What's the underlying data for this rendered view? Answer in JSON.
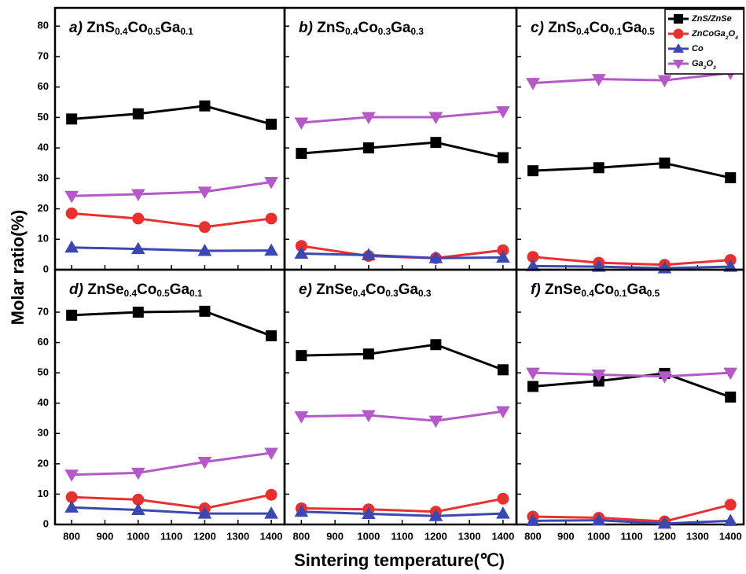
{
  "ylabel": "Molar ratio(%)",
  "xlabel": "Sintering temperature(℃)",
  "chart_data": [
    {
      "type": "line",
      "title": "a) ZnS0.4Co0.5Ga0.1",
      "x": [
        800,
        1000,
        1200,
        1400
      ],
      "xlim": [
        750,
        1440
      ],
      "xticks": [
        800,
        900,
        1000,
        1100,
        1200,
        1300,
        1400
      ],
      "ylim": [
        0,
        86
      ],
      "yticks": [
        0,
        10,
        20,
        30,
        40,
        50,
        60,
        70,
        80
      ],
      "series": [
        {
          "name": "ZnS/ZnSe",
          "color": "#000000",
          "marker": "s",
          "values": [
            49.5,
            51.2,
            53.8,
            47.8
          ]
        },
        {
          "name": "ZnCoGa2O4",
          "color": "#e8312f",
          "marker": "o",
          "values": [
            18.5,
            16.8,
            14.0,
            16.8
          ]
        },
        {
          "name": "Co",
          "color": "#3a48b0",
          "marker": "^",
          "values": [
            7.3,
            6.8,
            6.2,
            6.3
          ]
        },
        {
          "name": "Ga2O3",
          "color": "#b459c7",
          "marker": "v",
          "values": [
            24.2,
            24.8,
            25.6,
            28.8
          ]
        }
      ]
    },
    {
      "type": "line",
      "title": "b) ZnS0.4Co0.3Ga0.3",
      "x": [
        800,
        1000,
        1200,
        1400
      ],
      "xlim": [
        750,
        1440
      ],
      "xticks": [
        800,
        900,
        1000,
        1100,
        1200,
        1300,
        1400
      ],
      "ylim": [
        0,
        86
      ],
      "yticks": [
        0,
        10,
        20,
        30,
        40,
        50,
        60,
        70,
        80
      ],
      "series": [
        {
          "name": "ZnS/ZnSe",
          "color": "#000000",
          "marker": "s",
          "values": [
            38.2,
            40.0,
            41.8,
            36.8
          ]
        },
        {
          "name": "ZnCoGa2O4",
          "color": "#e8312f",
          "marker": "o",
          "values": [
            7.8,
            4.5,
            3.8,
            6.4
          ]
        },
        {
          "name": "Co",
          "color": "#3a48b0",
          "marker": "^",
          "values": [
            5.3,
            4.8,
            3.8,
            4.0
          ]
        },
        {
          "name": "Ga2O3",
          "color": "#b459c7",
          "marker": "v",
          "values": [
            48.3,
            50.1,
            50.1,
            52.0
          ]
        }
      ]
    },
    {
      "type": "line",
      "title": "c) ZnS0.4Co0.1Ga0.5",
      "x": [
        800,
        1000,
        1200,
        1400
      ],
      "xlim": [
        750,
        1440
      ],
      "xticks": [
        800,
        900,
        1000,
        1100,
        1200,
        1300,
        1400
      ],
      "ylim": [
        0,
        86
      ],
      "yticks": [
        0,
        10,
        20,
        30,
        40,
        50,
        60,
        70,
        80
      ],
      "legend": "upper right",
      "series": [
        {
          "name": "ZnS/ZnSe",
          "color": "#000000",
          "marker": "s",
          "values": [
            32.5,
            33.5,
            35.0,
            30.2
          ]
        },
        {
          "name": "ZnCoGa2O4",
          "color": "#e8312f",
          "marker": "o",
          "values": [
            4.2,
            2.3,
            1.6,
            3.2
          ]
        },
        {
          "name": "Co",
          "color": "#3a48b0",
          "marker": "^",
          "values": [
            1.2,
            1.0,
            0.5,
            1.0
          ]
        },
        {
          "name": "Ga2O3",
          "color": "#b459c7",
          "marker": "v",
          "values": [
            61.3,
            62.6,
            62.2,
            64.6
          ]
        }
      ]
    },
    {
      "type": "line",
      "title": "d) ZnSe0.4Co0.5Ga0.1",
      "x": [
        800,
        1000,
        1200,
        1400
      ],
      "xlim": [
        750,
        1440
      ],
      "xticks": [
        800,
        900,
        1000,
        1100,
        1200,
        1300,
        1400
      ],
      "ylim": [
        0,
        84
      ],
      "yticks": [
        0,
        10,
        20,
        30,
        40,
        50,
        60,
        70
      ],
      "series": [
        {
          "name": "ZnS/ZnSe",
          "color": "#000000",
          "marker": "s",
          "values": [
            69.0,
            70.0,
            70.3,
            62.2
          ]
        },
        {
          "name": "ZnCoGa2O4",
          "color": "#e8312f",
          "marker": "o",
          "values": [
            9.0,
            8.2,
            5.3,
            9.8
          ]
        },
        {
          "name": "Co",
          "color": "#3a48b0",
          "marker": "^",
          "values": [
            5.6,
            4.8,
            3.6,
            3.6
          ]
        },
        {
          "name": "Ga2O3",
          "color": "#b459c7",
          "marker": "v",
          "values": [
            16.4,
            17.0,
            20.6,
            23.6
          ]
        }
      ]
    },
    {
      "type": "line",
      "title": "e) ZnSe0.4Co0.3Ga0.3",
      "x": [
        800,
        1000,
        1200,
        1400
      ],
      "xlim": [
        750,
        1440
      ],
      "xticks": [
        800,
        900,
        1000,
        1100,
        1200,
        1300,
        1400
      ],
      "ylim": [
        0,
        84
      ],
      "yticks": [
        0,
        10,
        20,
        30,
        40,
        50,
        60,
        70
      ],
      "series": [
        {
          "name": "ZnS/ZnSe",
          "color": "#000000",
          "marker": "s",
          "values": [
            55.7,
            56.2,
            59.3,
            51.0
          ]
        },
        {
          "name": "ZnCoGa2O4",
          "color": "#e8312f",
          "marker": "o",
          "values": [
            5.3,
            5.0,
            4.2,
            8.5
          ]
        },
        {
          "name": "Co",
          "color": "#3a48b0",
          "marker": "^",
          "values": [
            4.2,
            3.5,
            2.8,
            3.6
          ]
        },
        {
          "name": "Ga2O3",
          "color": "#b459c7",
          "marker": "v",
          "values": [
            35.6,
            36.0,
            34.2,
            37.3
          ]
        }
      ]
    },
    {
      "type": "line",
      "title": "f) ZnSe0.4Co0.1Ga0.5",
      "x": [
        800,
        1000,
        1200,
        1400
      ],
      "xlim": [
        750,
        1440
      ],
      "xticks": [
        800,
        900,
        1000,
        1100,
        1200,
        1300,
        1400
      ],
      "ylim": [
        0,
        84
      ],
      "yticks": [
        0,
        10,
        20,
        30,
        40,
        50,
        60,
        70
      ],
      "series": [
        {
          "name": "ZnS/ZnSe",
          "color": "#000000",
          "marker": "s",
          "values": [
            45.5,
            47.3,
            49.8,
            42.0
          ]
        },
        {
          "name": "ZnCoGa2O4",
          "color": "#e8312f",
          "marker": "o",
          "values": [
            2.6,
            2.2,
            1.0,
            6.5
          ]
        },
        {
          "name": "Co",
          "color": "#3a48b0",
          "marker": "^",
          "values": [
            1.2,
            1.4,
            0.3,
            1.2
          ]
        },
        {
          "name": "Ga2O3",
          "color": "#b459c7",
          "marker": "v",
          "values": [
            50.0,
            49.4,
            48.8,
            50.0
          ]
        }
      ]
    }
  ]
}
